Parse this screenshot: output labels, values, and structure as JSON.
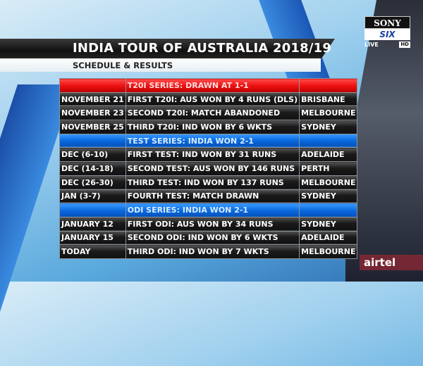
{
  "header": {
    "title": "INDIA TOUR OF AUSTRALIA 2018/19",
    "subtitle": "SCHEDULE & RESULTS"
  },
  "broadcaster": {
    "logo_top": "SONY",
    "logo_bottom": "SIX",
    "live": "LIVE",
    "hd": "HD"
  },
  "sponsor": {
    "name": "airtel"
  },
  "colors": {
    "t20_header": "#e11111",
    "series_header": "#0a6ae0",
    "row": "#1a1a1a"
  },
  "table": {
    "rows": [
      {
        "type": "red",
        "date": "",
        "match": "T20I SERIES: DRAWN AT 1-1",
        "venue": ""
      },
      {
        "type": "row",
        "date": "NOVEMBER 21",
        "match": "FIRST T20I: AUS WON BY 4 RUNS (DLS)",
        "venue": "BRISBANE"
      },
      {
        "type": "row",
        "date": "NOVEMBER 23",
        "match": "SECOND T20I: MATCH ABANDONED",
        "venue": "MELBOURNE"
      },
      {
        "type": "row",
        "date": "NOVEMBER 25",
        "match": "THIRD T20I: IND WON BY 6 WKTS",
        "venue": "SYDNEY"
      },
      {
        "type": "blue",
        "date": "",
        "match": "TEST SERIES: INDIA WON 2-1",
        "venue": ""
      },
      {
        "type": "row",
        "date": "DEC (6-10)",
        "match": "FIRST TEST: IND WON BY 31 RUNS",
        "venue": "ADELAIDE"
      },
      {
        "type": "row",
        "date": "DEC (14-18)",
        "match": "SECOND TEST: AUS WON BY 146 RUNS",
        "venue": "PERTH"
      },
      {
        "type": "row",
        "date": "DEC (26-30)",
        "match": "THIRD TEST: IND WON BY 137 RUNS",
        "venue": "MELBOURNE"
      },
      {
        "type": "row",
        "date": "JAN (3-7)",
        "match": "FOURTH TEST: MATCH DRAWN",
        "venue": "SYDNEY"
      },
      {
        "type": "blue",
        "date": "",
        "match": "ODI SERIES: INDIA WON 2-1",
        "venue": ""
      },
      {
        "type": "row",
        "date": "JANUARY 12",
        "match": "FIRST ODI: AUS WON BY 34 RUNS",
        "venue": "SYDNEY"
      },
      {
        "type": "row",
        "date": "JANUARY 15",
        "match": "SECOND ODI: IND WON BY 6 WKTS",
        "venue": "ADELAIDE"
      },
      {
        "type": "row",
        "date": "TODAY",
        "match": "THIRD ODI: IND WON BY 7 WKTS",
        "venue": "MELBOURNE"
      }
    ]
  }
}
